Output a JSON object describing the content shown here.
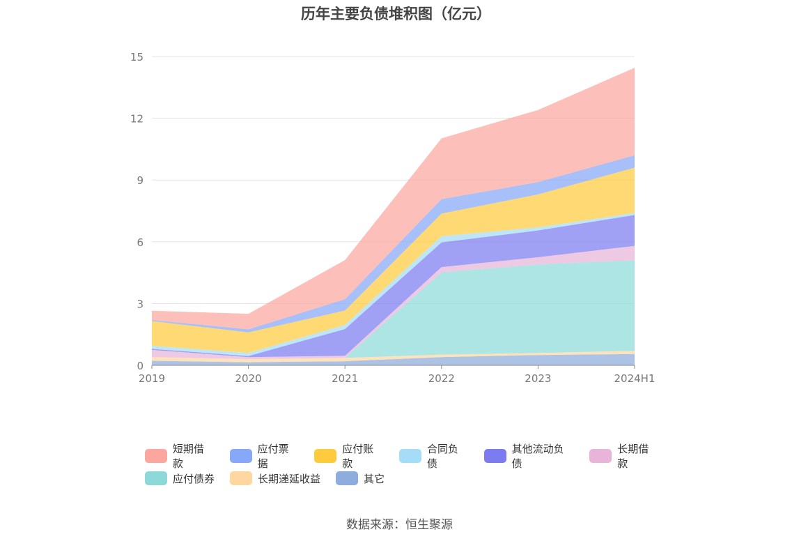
{
  "chart_data": {
    "type": "area",
    "stacked": true,
    "title": "历年主要负债堆积图（亿元）",
    "x": [
      "2019",
      "2020",
      "2021",
      "2022",
      "2023",
      "2024H1"
    ],
    "yticks": [
      0,
      3,
      6,
      9,
      12,
      15
    ],
    "ylim": [
      0,
      15
    ],
    "grid": true,
    "legend_position": "bottom",
    "series": [
      {
        "name": "其它",
        "color": "#8eacdc",
        "values": [
          0.22,
          0.15,
          0.2,
          0.4,
          0.5,
          0.55
        ]
      },
      {
        "name": "长期递延收益",
        "color": "#fed7a0",
        "values": [
          0.18,
          0.15,
          0.16,
          0.12,
          0.1,
          0.15
        ]
      },
      {
        "name": "应付债券",
        "color": "#8dd9d9",
        "values": [
          0,
          0,
          0,
          4.0,
          4.3,
          4.4
        ]
      },
      {
        "name": "长期借款",
        "color": "#e8b4d9",
        "values": [
          0.35,
          0.1,
          0.1,
          0.25,
          0.35,
          0.7
        ]
      },
      {
        "name": "其他流动负债",
        "color": "#7c7cf0",
        "values": [
          0.05,
          0.05,
          1.3,
          1.2,
          1.3,
          1.5
        ]
      },
      {
        "name": "合同负债",
        "color": "#a5dcf7",
        "values": [
          0.15,
          0.15,
          0.2,
          0.3,
          0.15,
          0.1
        ]
      },
      {
        "name": "应付账款",
        "color": "#fecb3e",
        "values": [
          1.2,
          1.0,
          0.7,
          1.1,
          1.6,
          2.2
        ]
      },
      {
        "name": "应付票据",
        "color": "#87a8f8",
        "values": [
          0.05,
          0.15,
          0.55,
          0.7,
          0.6,
          0.6
        ]
      },
      {
        "name": "短期借款",
        "color": "#fba69e",
        "values": [
          0.45,
          0.75,
          1.9,
          2.95,
          3.5,
          4.25
        ]
      }
    ],
    "legend_order": [
      "短期借款",
      "应付票据",
      "应付账款",
      "合同负债",
      "其他流动负债",
      "长期借款",
      "应付债券",
      "长期递延收益",
      "其它"
    ]
  },
  "source": "数据来源：恒生聚源"
}
